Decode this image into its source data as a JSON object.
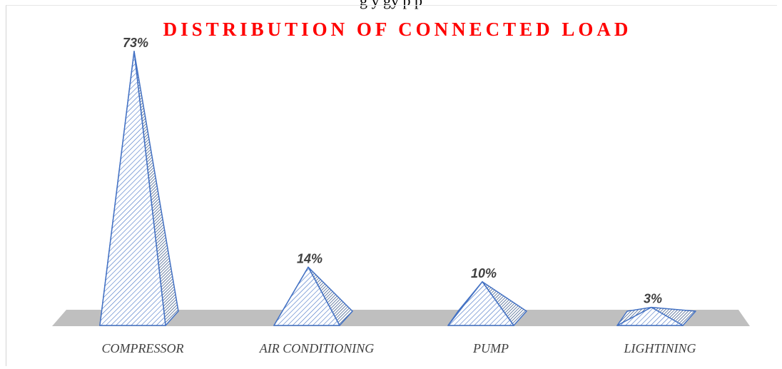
{
  "page_caption": "g       y   gy   p   p",
  "colors": {
    "title": "#ff0000",
    "pyramid_stroke": "#4472c4",
    "pyramid_hatch": "#4472c4",
    "pyramid_fill": "#ffffff",
    "floor": "#bfbfbf",
    "label": "#404040"
  },
  "chart_data": {
    "type": "bar",
    "shape": "pyramid-3d",
    "title": "DISTRIBUTION OF CONNECTED LOAD",
    "categories": [
      "COMPRESSOR",
      "AIR CONDITIONING",
      "PUMP",
      "LIGHTINING"
    ],
    "values": [
      73,
      14,
      10,
      3
    ],
    "data_labels": [
      "73%",
      "14%",
      "10%",
      "3%"
    ],
    "unit": "%",
    "ylim": [
      0,
      73
    ],
    "grid": false,
    "legend": "none",
    "xlabel": "",
    "ylabel": ""
  }
}
